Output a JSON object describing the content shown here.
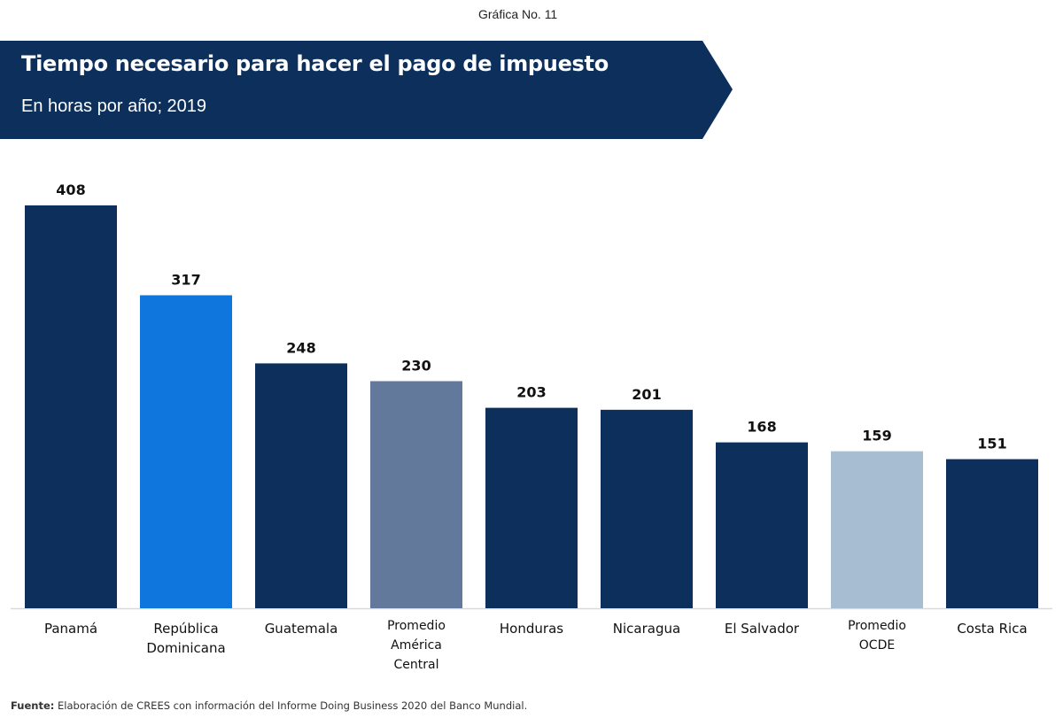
{
  "figure_number": "Gráfica No. 11",
  "banner": {
    "title": "Tiempo necesario para hacer el pago de impuesto",
    "subtitle": "En horas por año; 2019",
    "color": "#0d2f5c"
  },
  "source": {
    "label": "Fuente:",
    "text": " Elaboración de CREES con información del Informe Doing Business 2020 del Banco Mundial."
  },
  "chart_data": {
    "type": "bar",
    "title": "Tiempo necesario para hacer el pago de impuesto",
    "subtitle": "En horas por año; 2019",
    "xlabel": "",
    "ylabel": "",
    "ylim": [
      0,
      420
    ],
    "grid": false,
    "legend": "none",
    "categories": [
      [
        "Panamá"
      ],
      [
        "República",
        "Dominicana"
      ],
      [
        "Guatemala"
      ],
      [
        "Promedio",
        "América",
        "Central"
      ],
      [
        "Honduras"
      ],
      [
        "Nicaragua"
      ],
      [
        "El Salvador"
      ],
      [
        "Promedio",
        "OCDE"
      ],
      [
        "Costa Rica"
      ]
    ],
    "values": [
      408,
      317,
      248,
      230,
      203,
      201,
      168,
      159,
      151
    ],
    "colors": [
      "#0d2f5c",
      "#0e76dc",
      "#0d2f5c",
      "#62799c",
      "#0d2f5c",
      "#0d2f5c",
      "#0d2f5c",
      "#a7bdd2",
      "#0d2f5c"
    ]
  }
}
